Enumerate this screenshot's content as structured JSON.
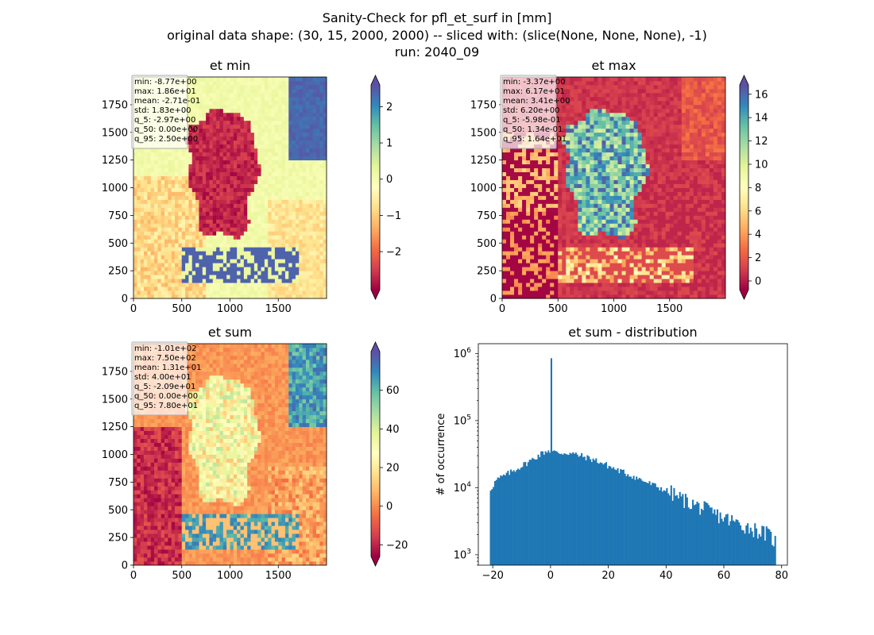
{
  "figure": {
    "title_line1": "Sanity-Check for pfl_et_surf in [mm]",
    "title_line2": "original data shape: (30, 15, 2000, 2000) -- sliced with: (slice(None, None, None), -1)",
    "title_line3": "run: 2040_09"
  },
  "chart_data": [
    {
      "type": "heatmap",
      "title": "et min",
      "colormap": "Spectral",
      "colorbar": {
        "range": [
          -3.05,
          2.6
        ],
        "ticks": [
          -2,
          -1,
          0,
          1,
          2
        ],
        "tick_labels": [
          "−2",
          "−1",
          "0",
          "1",
          "2"
        ],
        "extend": "both"
      },
      "x_ticks": [
        0,
        500,
        1000,
        1500
      ],
      "y_ticks": [
        0,
        250,
        500,
        750,
        1000,
        1250,
        1500,
        1750
      ],
      "xlim": [
        0,
        2000
      ],
      "ylim": [
        0,
        2000
      ],
      "stats": [
        "min: -8.77e+00",
        "max: 1.86e+01",
        "mean: -2.71e-01",
        "std: 1.83e+00",
        "q_5: -2.97e+00",
        "q_50: 0.00e+00",
        "q_95: 2.50e+00"
      ]
    },
    {
      "type": "heatmap",
      "title": "et max",
      "colormap": "Spectral",
      "colorbar": {
        "range": [
          -0.75,
          16.8
        ],
        "ticks": [
          0,
          2,
          4,
          6,
          8,
          10,
          12,
          14,
          16
        ],
        "tick_labels": [
          "0",
          "2",
          "4",
          "6",
          "8",
          "10",
          "12",
          "14",
          "16"
        ],
        "extend": "both"
      },
      "x_ticks": [
        0,
        500,
        1000,
        1500
      ],
      "y_ticks": [
        0,
        250,
        500,
        750,
        1000,
        1250,
        1500,
        1750
      ],
      "xlim": [
        0,
        2000
      ],
      "ylim": [
        0,
        2000
      ],
      "stats": [
        "min: -3.37e+00",
        "max: 6.17e+01",
        "mean: 3.41e+00",
        "std: 6.20e+00",
        "q_5: -5.98e-01",
        "q_50: 1.34e-01",
        "q_95: 1.64e+01"
      ]
    },
    {
      "type": "heatmap",
      "title": "et sum",
      "colormap": "Spectral",
      "colorbar": {
        "range": [
          -26,
          80
        ],
        "ticks": [
          -20,
          0,
          20,
          40,
          60
        ],
        "tick_labels": [
          "−20",
          "0",
          "20",
          "40",
          "60"
        ],
        "extend": "both"
      },
      "x_ticks": [
        0,
        500,
        1000,
        1500
      ],
      "y_ticks": [
        0,
        250,
        500,
        750,
        1000,
        1250,
        1500,
        1750
      ],
      "xlim": [
        0,
        2000
      ],
      "ylim": [
        0,
        2000
      ],
      "stats": [
        "min: -1.01e+02",
        "max: 7.50e+02",
        "mean: 1.31e+01",
        "std: 4.00e+01",
        "q_5: -2.09e+01",
        "q_50: 0.00e+00",
        "q_95: 7.80e+01"
      ]
    },
    {
      "type": "bar",
      "title": "et sum - distribution",
      "ylabel": "# of occurrence",
      "yscale": "log",
      "color": "#1f77b4",
      "xlim": [
        -25,
        82
      ],
      "ylim": [
        700,
        1400000
      ],
      "x_ticks": [
        -20,
        0,
        20,
        40,
        60,
        80
      ],
      "x_tick_labels": [
        "−20",
        "0",
        "20",
        "40",
        "60",
        "80"
      ],
      "y_ticks": [
        1000,
        10000,
        100000,
        1000000
      ],
      "bin_range": [
        -21,
        78
      ],
      "bin_width": 0.5,
      "spike": {
        "x": 0,
        "value": 850000
      },
      "profile": [
        [
          -21,
          9500
        ],
        [
          -19,
          13000
        ],
        [
          -14,
          17000
        ],
        [
          -8,
          24000
        ],
        [
          -3,
          33000
        ],
        [
          -1,
          36000
        ],
        [
          2,
          33000
        ],
        [
          6,
          33000
        ],
        [
          10,
          30000
        ],
        [
          16,
          25000
        ],
        [
          22,
          19000
        ],
        [
          28,
          15000
        ],
        [
          34,
          11500
        ],
        [
          40,
          9000
        ],
        [
          46,
          6500
        ],
        [
          52,
          5000
        ],
        [
          58,
          3800
        ],
        [
          64,
          3000
        ],
        [
          70,
          2400
        ],
        [
          75,
          2000
        ],
        [
          78,
          1500
        ]
      ]
    }
  ]
}
